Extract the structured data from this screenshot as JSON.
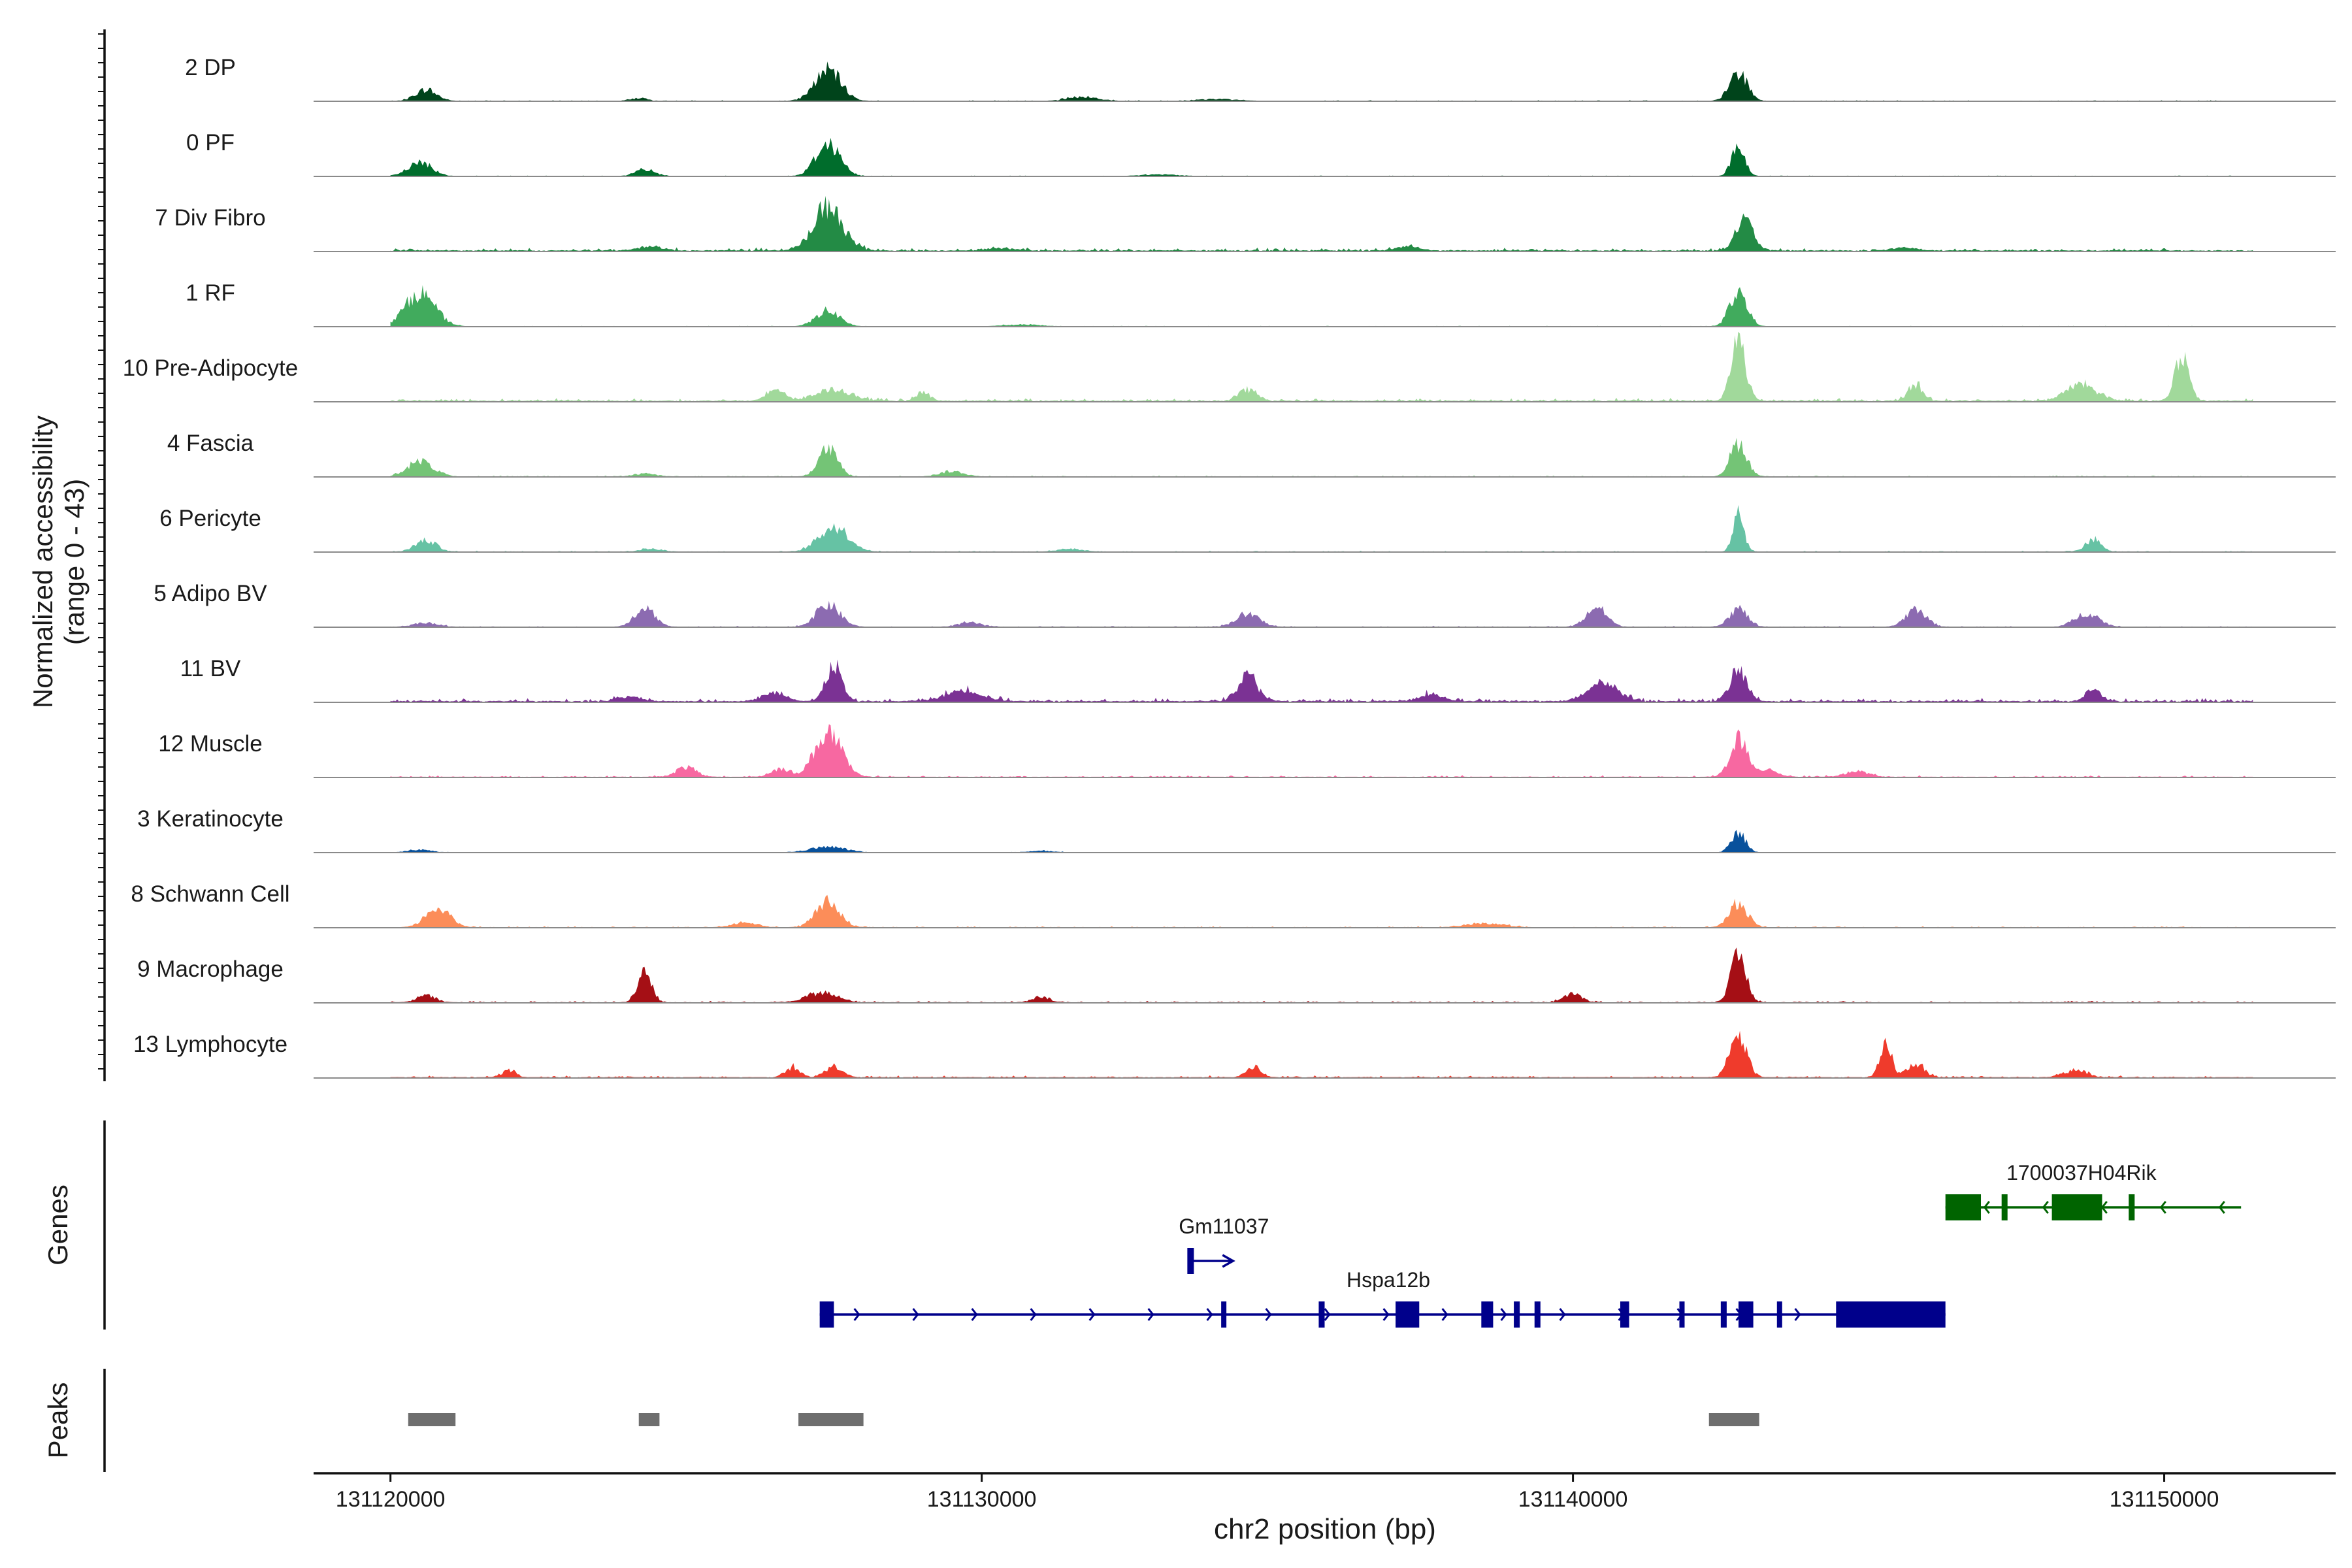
{
  "chart_data": {
    "type": "area",
    "chromosome": "chr2",
    "xlabel": "chr2 position (bp)",
    "ylabel": "Normalized accessibility",
    "ylabel_range": "(range 0 - 43)",
    "ylim": [
      0,
      43
    ],
    "xlim": [
      131118700,
      131152900
    ],
    "x_ticks": [
      131120000,
      131130000,
      131140000,
      131150000
    ],
    "x_tick_labels": [
      "131120000",
      "131130000",
      "131140000",
      "131150000"
    ],
    "genes_panel_label": "Genes",
    "peaks_panel_label": "Peaks",
    "series": [
      {
        "name": "2 DP",
        "color": "#00441b",
        "noise": 0.25,
        "peaks": [
          [
            131120600,
            8,
            180
          ],
          [
            131127400,
            22,
            220
          ],
          [
            131124200,
            2,
            150
          ],
          [
            131131700,
            3,
            250
          ],
          [
            131142800,
            20,
            150
          ],
          [
            131134000,
            1.5,
            300
          ]
        ]
      },
      {
        "name": "0 PF",
        "color": "#006d2c",
        "noise": 0.2,
        "peaks": [
          [
            131120500,
            10,
            200
          ],
          [
            131127400,
            24,
            200
          ],
          [
            131124300,
            5,
            160
          ],
          [
            131142800,
            22,
            110
          ],
          [
            131133000,
            1.2,
            300
          ]
        ]
      },
      {
        "name": "7 Div Fibro",
        "color": "#238b45",
        "noise": 0.9,
        "peaks": [
          [
            131127400,
            30,
            250
          ],
          [
            131142900,
            22,
            150
          ],
          [
            131124400,
            3,
            200
          ],
          [
            131130300,
            2,
            200
          ],
          [
            131137200,
            3,
            200
          ],
          [
            131145600,
            2,
            200
          ]
        ]
      },
      {
        "name": "1 RF",
        "color": "#41ab5d",
        "noise": 0.2,
        "peaks": [
          [
            131120500,
            24,
            250
          ],
          [
            131127400,
            11,
            200
          ],
          [
            131142800,
            24,
            150
          ],
          [
            131130700,
            1.5,
            300
          ]
        ]
      },
      {
        "name": "10 Pre-Adipocyte",
        "color": "#a1d99b",
        "noise": 0.9,
        "peaks": [
          [
            131142800,
            44,
            120
          ],
          [
            131150300,
            30,
            120
          ],
          [
            131145800,
            12,
            120
          ],
          [
            131148600,
            12,
            250
          ],
          [
            131127500,
            8,
            300
          ],
          [
            131126500,
            8,
            150
          ],
          [
            131134500,
            8,
            150
          ],
          [
            131129000,
            6,
            120
          ]
        ]
      },
      {
        "name": "4 Fascia",
        "color": "#74c476",
        "noise": 0.3,
        "peaks": [
          [
            131120500,
            11,
            220
          ],
          [
            131127400,
            20,
            160
          ],
          [
            131142800,
            24,
            140
          ],
          [
            131129500,
            4,
            200
          ],
          [
            131124300,
            2,
            200
          ]
        ]
      },
      {
        "name": "6 Pericyte",
        "color": "#66c2a4",
        "noise": 0.3,
        "peaks": [
          [
            131120600,
            8,
            180
          ],
          [
            131127500,
            18,
            250
          ],
          [
            131142800,
            28,
            90
          ],
          [
            131148800,
            9,
            130
          ],
          [
            131124400,
            2,
            200
          ],
          [
            131131500,
            2,
            200
          ]
        ]
      },
      {
        "name": "5 Adipo BV",
        "color": "#8c6bb1",
        "noise": 0.3,
        "peaks": [
          [
            131124300,
            14,
            170
          ],
          [
            131127400,
            16,
            200
          ],
          [
            131134500,
            9,
            200
          ],
          [
            131140400,
            14,
            170
          ],
          [
            131142800,
            13,
            150
          ],
          [
            131145800,
            13,
            170
          ],
          [
            131148700,
            10,
            200
          ],
          [
            131120600,
            3,
            200
          ],
          [
            131129800,
            3,
            200
          ]
        ]
      },
      {
        "name": "11 BV",
        "color": "#7b3294",
        "noise": 1.0,
        "peaks": [
          [
            131127500,
            26,
            130
          ],
          [
            131134500,
            18,
            170
          ],
          [
            131140500,
            14,
            250
          ],
          [
            131142800,
            22,
            140
          ],
          [
            131148800,
            10,
            120
          ],
          [
            131129700,
            8,
            300
          ],
          [
            131126500,
            6,
            200
          ],
          [
            131124000,
            3,
            200
          ],
          [
            131137600,
            5,
            200
          ]
        ]
      },
      {
        "name": "12 Muscle",
        "color": "#f768a1",
        "noise": 0.5,
        "peaks": [
          [
            131127400,
            32,
            220
          ],
          [
            131142800,
            28,
            140
          ],
          [
            131125000,
            7,
            170
          ],
          [
            131126600,
            6,
            160
          ],
          [
            131143300,
            6,
            150
          ],
          [
            131144800,
            4,
            200
          ]
        ]
      },
      {
        "name": "3 Keratinocyte",
        "color": "#08519c",
        "noise": 0.15,
        "peaks": [
          [
            131142800,
            14,
            120
          ],
          [
            131127400,
            4,
            300
          ],
          [
            131120500,
            2,
            200
          ],
          [
            131131000,
            1.2,
            200
          ]
        ]
      },
      {
        "name": "8 Schwann Cell",
        "color": "#fc8d59",
        "noise": 0.35,
        "peaks": [
          [
            131120800,
            14,
            200
          ],
          [
            131127400,
            18,
            200
          ],
          [
            131142800,
            18,
            150
          ],
          [
            131126000,
            4,
            200
          ],
          [
            131138500,
            3,
            300
          ]
        ]
      },
      {
        "name": "9 Macrophage",
        "color": "#a50f15",
        "noise": 0.45,
        "peaks": [
          [
            131124300,
            24,
            110
          ],
          [
            131142800,
            32,
            130
          ],
          [
            131127300,
            7,
            250
          ],
          [
            131120600,
            5,
            150
          ],
          [
            131140000,
            6,
            150
          ],
          [
            131131000,
            4,
            150
          ]
        ]
      },
      {
        "name": "13 Lymphocyte",
        "color": "#ef3b2c",
        "noise": 0.6,
        "peaks": [
          [
            131142800,
            30,
            140
          ],
          [
            131145300,
            22,
            100
          ],
          [
            131145800,
            10,
            130
          ],
          [
            131126800,
            7,
            120
          ],
          [
            131127500,
            8,
            150
          ],
          [
            131134600,
            8,
            120
          ],
          [
            131148500,
            5,
            200
          ],
          [
            131122000,
            5,
            120
          ]
        ]
      }
    ],
    "genes": [
      {
        "name": "Hspa12b",
        "color": "#00008b",
        "strand": "+",
        "start": 131127260,
        "end": 131146300,
        "track": "lower",
        "exons": [
          [
            131127260,
            131127500
          ],
          [
            131134050,
            131134120
          ],
          [
            131135700,
            131135800
          ],
          [
            131137000,
            131137400
          ],
          [
            131138450,
            131138650
          ],
          [
            131139000,
            131139100
          ],
          [
            131139350,
            131139450
          ],
          [
            131140800,
            131140950
          ],
          [
            131141800,
            131141870
          ],
          [
            131142500,
            131142600
          ],
          [
            131142800,
            131143050
          ],
          [
            131143450,
            131143530
          ],
          [
            131144450,
            131146300
          ]
        ]
      },
      {
        "name": "Gm11037",
        "color": "#00008b",
        "strand": "+",
        "start": 131133500,
        "end": 131134250,
        "track": "middle",
        "exons": [
          [
            131133500,
            131133520
          ]
        ]
      },
      {
        "name": "1700037H04Rik",
        "color": "#006400",
        "strand": "-",
        "start": 131146300,
        "end": 131151300,
        "track": "upper",
        "exons": [
          [
            131146300,
            131146900
          ],
          [
            131147250,
            131147350
          ],
          [
            131148100,
            131148950
          ],
          [
            131149400,
            131149500
          ]
        ]
      }
    ],
    "peaks": [
      [
        131120300,
        131121100
      ],
      [
        131124200,
        131124550
      ],
      [
        131126900,
        131128000
      ],
      [
        131142300,
        131143150
      ]
    ]
  }
}
